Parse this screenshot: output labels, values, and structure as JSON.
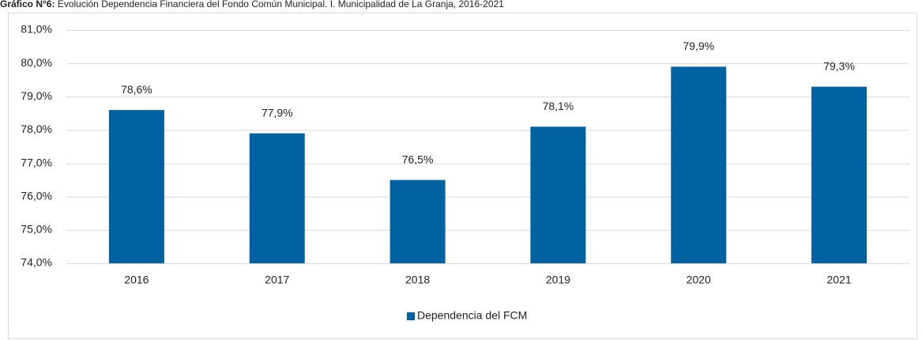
{
  "chart_data": {
    "type": "bar",
    "title_prefix": "Gráfico N°6:",
    "title": "Evolución Dependencia Financiera del Fondo Común Municipal. I. Municipalidad de La Granja, 2016-2021",
    "categories": [
      "2016",
      "2017",
      "2018",
      "2019",
      "2020",
      "2021"
    ],
    "series": [
      {
        "name": "Dependencia del FCM",
        "color": "#0062a0",
        "values": [
          78.6,
          77.9,
          76.5,
          78.1,
          79.9,
          79.3
        ],
        "value_labels": [
          "78,6%",
          "77,9%",
          "76,5%",
          "78,1%",
          "79,9%",
          "79,3%"
        ]
      }
    ],
    "ylim": [
      74,
      81
    ],
    "yticks": [
      {
        "value": 74,
        "label": "74,0%"
      },
      {
        "value": 75,
        "label": "75,0%"
      },
      {
        "value": 76,
        "label": "76,0%"
      },
      {
        "value": 77,
        "label": "77,0%"
      },
      {
        "value": 78,
        "label": "78,0%"
      },
      {
        "value": 79,
        "label": "79,0%"
      },
      {
        "value": 80,
        "label": "80,0%"
      },
      {
        "value": 81,
        "label": "81,0%"
      }
    ],
    "grid": true,
    "legend": "bottom"
  }
}
